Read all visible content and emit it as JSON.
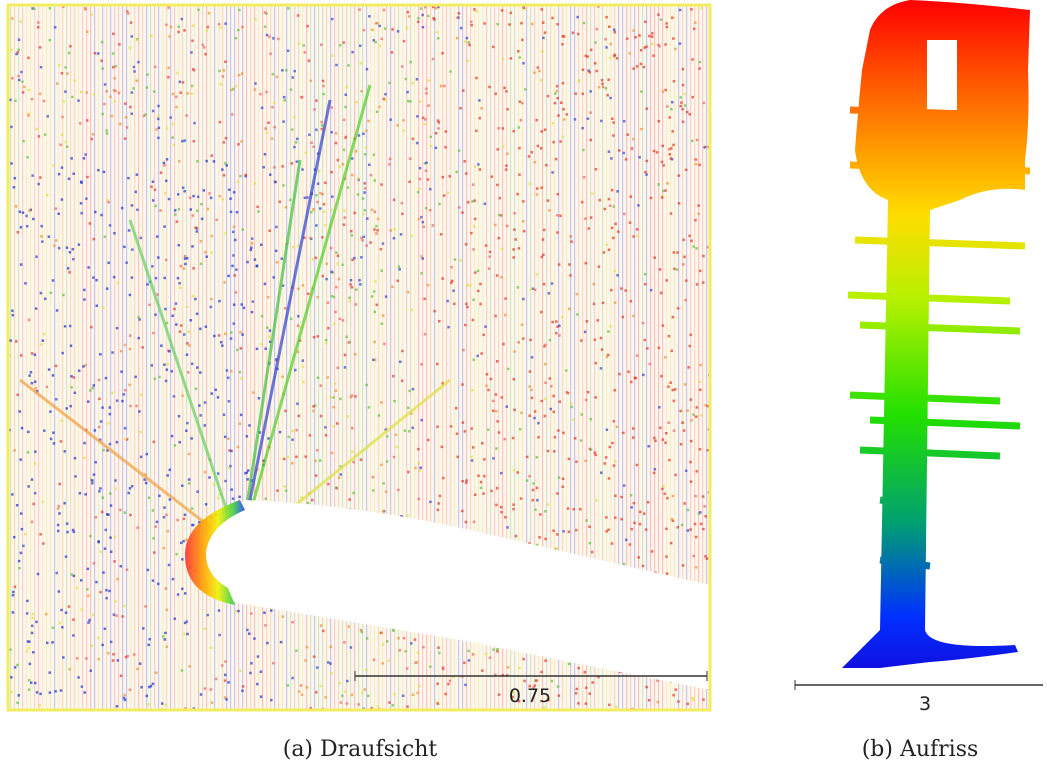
{
  "panels": [
    {
      "scale_label": "0.75",
      "caption": "(a) Draufsicht"
    },
    {
      "scale_label": "3",
      "caption": "(b) Aufriss"
    }
  ]
}
